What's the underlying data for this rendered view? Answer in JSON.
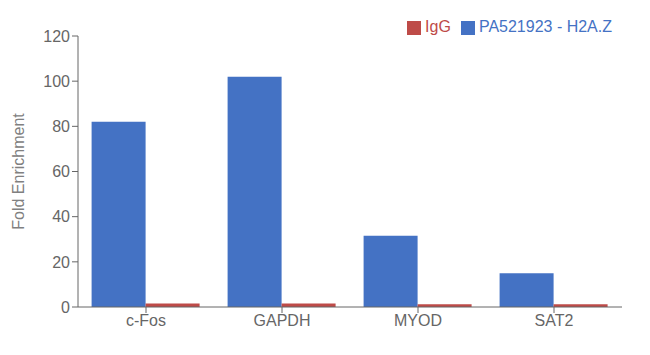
{
  "chart_data": {
    "type": "bar",
    "ylabel": "Fold Enrichment",
    "categories": [
      "c-Fos",
      "GAPDH",
      "MYOD",
      "SAT2"
    ],
    "series": [
      {
        "name": "PA521923 - H2A.Z",
        "color": "#4472C4",
        "values": [
          82.0,
          102.0,
          31.5,
          15.0
        ]
      },
      {
        "name": "IgG",
        "color": "#BE4B48",
        "values": [
          1.5,
          1.5,
          1.2,
          1.2
        ]
      }
    ],
    "ylim": [
      0,
      120
    ],
    "yticks": [
      0,
      20,
      40,
      60,
      80,
      100,
      120
    ],
    "grid": false,
    "legend": "upper right"
  }
}
